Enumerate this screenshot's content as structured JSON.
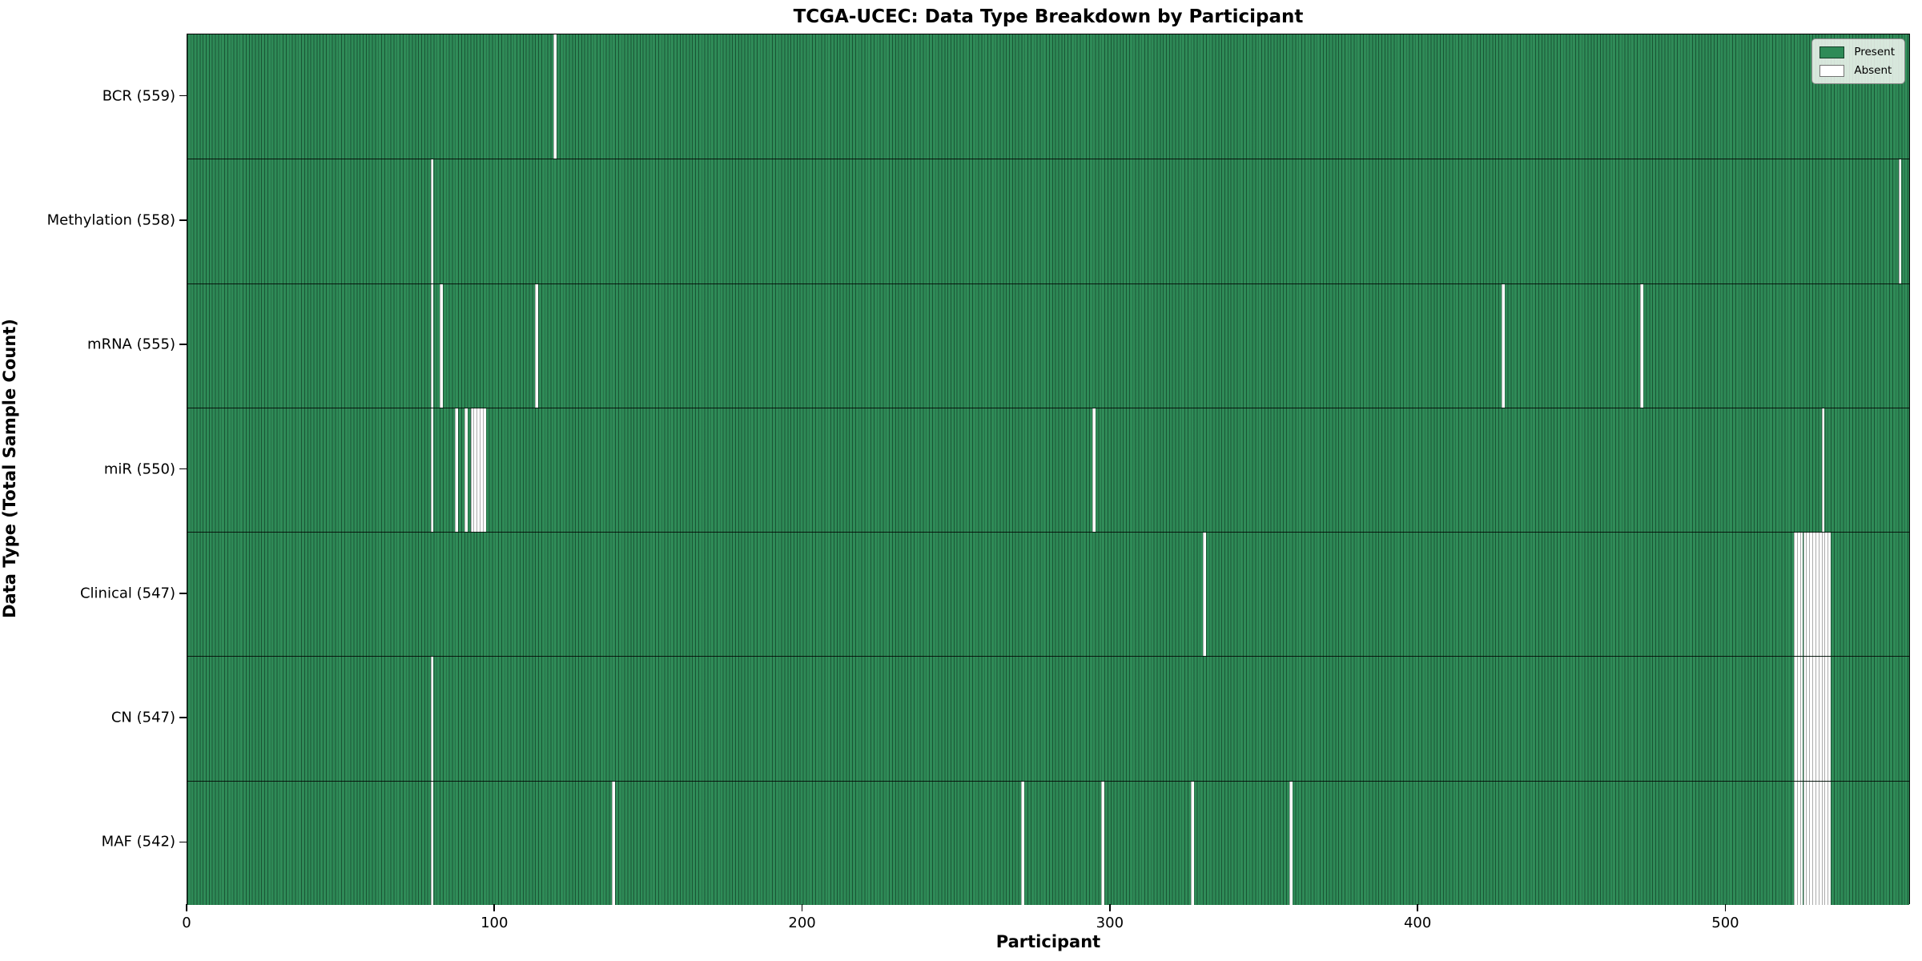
{
  "figure": {
    "title": "TCGA-UCEC: Data Type Breakdown by Participant",
    "xlabel": "Participant",
    "ylabel": "Data Type (Total Sample Count)"
  },
  "legend": {
    "present_label": "Present",
    "absent_label": "Absent",
    "present_color": "#2e8b57",
    "absent_color": "#ffffff",
    "position": "upper right"
  },
  "chart_data": {
    "type": "heatmap",
    "title": "TCGA-UCEC: Data Type Breakdown by Participant",
    "xlabel": "Participant",
    "ylabel": "Data Type (Total Sample Count)",
    "x_ticks": [
      0,
      100,
      200,
      300,
      400,
      500
    ],
    "x_range": [
      0,
      560
    ],
    "n_participants": 560,
    "grid": false,
    "legend_entries": [
      "Present",
      "Absent"
    ],
    "legend_position": "upper right",
    "colors": {
      "present": "#2e8b57",
      "absent": "#ffffff"
    },
    "rows": [
      {
        "data_type": "BCR",
        "label": "BCR (559)",
        "present_count": 559,
        "absent_participants": [
          119
        ]
      },
      {
        "data_type": "Methylation",
        "label": "Methylation (558)",
        "present_count": 558,
        "absent_participants": [
          79,
          556
        ]
      },
      {
        "data_type": "mRNA",
        "label": "mRNA (555)",
        "present_count": 555,
        "absent_participants": [
          79,
          82,
          113,
          427,
          472
        ]
      },
      {
        "data_type": "miR",
        "label": "miR (550)",
        "present_count": 550,
        "absent_participants": [
          79,
          87,
          90,
          92,
          93,
          94,
          95,
          96,
          294,
          531
        ]
      },
      {
        "data_type": "Clinical",
        "label": "Clinical (547)",
        "present_count": 547,
        "absent_participants": [
          330,
          522,
          523,
          524,
          525,
          526,
          527,
          528,
          529,
          530,
          531,
          532,
          533
        ]
      },
      {
        "data_type": "CN",
        "label": "CN (547)",
        "present_count": 547,
        "absent_participants": [
          79,
          522,
          523,
          524,
          525,
          526,
          527,
          528,
          529,
          530,
          531,
          532,
          533
        ]
      },
      {
        "data_type": "MAF",
        "label": "MAF (542)",
        "present_count": 542,
        "absent_participants": [
          79,
          138,
          271,
          297,
          326,
          358,
          522,
          523,
          524,
          525,
          526,
          527,
          528,
          529,
          530,
          531,
          532,
          533
        ]
      }
    ]
  }
}
